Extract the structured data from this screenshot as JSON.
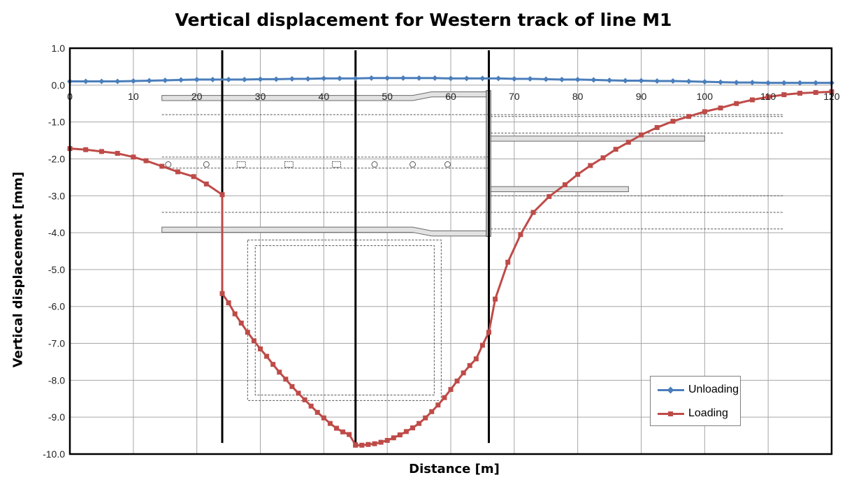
{
  "chart_data": {
    "type": "line",
    "title": "Vertical displacement for Western track of line M1",
    "xlabel": "Distance [m]",
    "ylabel": "Vertical displacement [mm]",
    "xlim": [
      0,
      120
    ],
    "ylim": [
      -10,
      1
    ],
    "x_ticks": [
      "0",
      "10",
      "20",
      "30",
      "40",
      "50",
      "60",
      "70",
      "80",
      "90",
      "100",
      "110",
      "120"
    ],
    "y_ticks": [
      "1.0",
      "0.0",
      "-1.0",
      "-2.0",
      "-3.0",
      "-4.0",
      "-5.0",
      "-6.0",
      "-7.0",
      "-8.0",
      "-9.0",
      "-10.0"
    ],
    "grid": true,
    "legend_position": "bottom-right",
    "vertical_markers": [
      24,
      45,
      66
    ],
    "series": [
      {
        "name": "Unloading",
        "color": "#4a7ebb",
        "marker": "diamond",
        "x": [
          0,
          2.5,
          5,
          7.5,
          10,
          12.5,
          15,
          17.5,
          20,
          22.5,
          25,
          27.5,
          30,
          32.5,
          35,
          37.5,
          40,
          42.5,
          45,
          47.5,
          50,
          52.5,
          55,
          57.5,
          60,
          62.5,
          65,
          67.5,
          70,
          72.5,
          75,
          77.5,
          80,
          82.5,
          85,
          87.5,
          90,
          92.5,
          95,
          97.5,
          100,
          102.5,
          105,
          107.5,
          110,
          112.5,
          115,
          117.5,
          120
        ],
        "y": [
          0.1,
          0.1,
          0.1,
          0.1,
          0.11,
          0.12,
          0.13,
          0.14,
          0.15,
          0.15,
          0.15,
          0.15,
          0.16,
          0.16,
          0.17,
          0.17,
          0.18,
          0.18,
          0.18,
          0.19,
          0.19,
          0.19,
          0.19,
          0.19,
          0.18,
          0.18,
          0.18,
          0.18,
          0.17,
          0.17,
          0.16,
          0.15,
          0.15,
          0.14,
          0.13,
          0.12,
          0.12,
          0.11,
          0.11,
          0.1,
          0.09,
          0.08,
          0.07,
          0.07,
          0.06,
          0.06,
          0.06,
          0.06,
          0.06
        ]
      },
      {
        "name": "Loading",
        "color": "#be4b48",
        "marker": "square",
        "x": [
          0,
          2.5,
          5,
          7.5,
          10,
          12,
          14.5,
          17,
          19.5,
          21.5,
          24,
          24,
          25,
          26,
          27,
          28,
          29,
          30,
          31,
          32,
          33,
          34,
          35,
          36,
          37,
          38,
          39,
          40,
          41,
          42,
          43,
          44,
          45,
          45,
          46,
          47,
          48,
          49,
          50,
          51,
          52,
          53,
          54,
          55,
          56,
          57,
          58,
          59,
          60,
          61,
          62,
          63,
          64,
          65,
          66,
          67,
          69,
          71,
          73,
          75.5,
          78,
          80,
          82,
          84,
          86,
          88,
          90,
          92.5,
          95,
          97.5,
          100,
          102.5,
          105,
          107.5,
          110,
          112.5,
          115,
          117.5,
          120
        ],
        "y": [
          -1.72,
          -1.75,
          -1.8,
          -1.85,
          -1.95,
          -2.05,
          -2.2,
          -2.35,
          -2.48,
          -2.68,
          -2.97,
          -5.65,
          -5.9,
          -6.2,
          -6.45,
          -6.7,
          -6.93,
          -7.15,
          -7.35,
          -7.57,
          -7.78,
          -7.97,
          -8.17,
          -8.35,
          -8.53,
          -8.7,
          -8.87,
          -9.02,
          -9.17,
          -9.3,
          -9.4,
          -9.47,
          -9.75,
          -9.76,
          -9.76,
          -9.74,
          -9.72,
          -9.68,
          -9.63,
          -9.56,
          -9.48,
          -9.39,
          -9.29,
          -9.17,
          -9.02,
          -8.85,
          -8.67,
          -8.47,
          -8.25,
          -8.02,
          -7.8,
          -7.6,
          -7.42,
          -7.05,
          -6.7,
          -5.8,
          -4.8,
          -4.05,
          -3.45,
          -3.02,
          -2.7,
          -2.42,
          -2.18,
          -1.97,
          -1.74,
          -1.55,
          -1.35,
          -1.15,
          -0.98,
          -0.85,
          -0.72,
          -0.62,
          -0.5,
          -0.4,
          -0.32,
          -0.26,
          -0.22,
          -0.2,
          -0.18
        ]
      }
    ]
  }
}
